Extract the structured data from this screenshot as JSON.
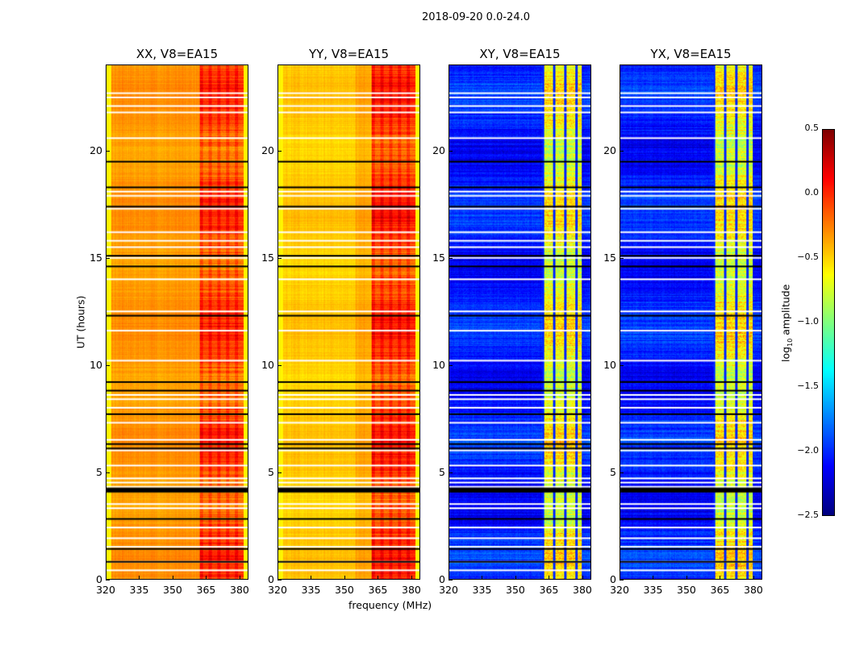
{
  "chart_data": {
    "type": "heatmap",
    "title": "2018-09-20 0.0-24.0",
    "xlabel": "frequency (MHz)",
    "ylabel": "UT (hours)",
    "xlim": [
      320,
      384
    ],
    "ylim": [
      0,
      24
    ],
    "xticks": [
      "320",
      "335",
      "350",
      "365",
      "380"
    ],
    "yticks": [
      "0",
      "5",
      "10",
      "15",
      "20"
    ],
    "panels": [
      {
        "title": "XX, V8=EA15",
        "base_level": -0.4,
        "band_level": -0.05,
        "band_mhz": [
          362,
          382
        ]
      },
      {
        "title": "YY, V8=EA15",
        "base_level": -0.45,
        "band_level": 0.0,
        "band_mhz": [
          362,
          382
        ]
      },
      {
        "title": "XY, V8=EA15",
        "base_level": -2.2,
        "band_level": -0.8,
        "band_mhz": [
          362,
          380
        ]
      },
      {
        "title": "YX, V8=EA15",
        "base_level": -2.2,
        "band_level": -0.8,
        "band_mhz": [
          362,
          380
        ]
      }
    ],
    "flagged_white_hours": [
      0.4,
      0.8,
      1.5,
      1.9,
      2.4,
      3.3,
      3.5,
      4.3,
      4.5,
      4.7,
      5.3,
      6.0,
      6.5,
      7.3,
      8.0,
      8.4,
      8.6,
      10.2,
      11.6,
      12.5,
      14.0,
      15.0,
      15.5,
      15.8,
      16.2,
      17.3,
      17.9,
      18.1,
      20.6,
      21.8,
      22.1,
      22.5,
      22.7
    ],
    "flagged_black_hours": [
      0.8,
      1.4,
      2.8,
      4.1,
      4.2,
      6.1,
      6.3,
      7.7,
      8.8,
      9.2,
      12.3,
      14.6,
      15.1,
      17.4,
      18.3,
      19.5
    ],
    "colorbar": {
      "label": "log10 amplitude",
      "label_main": "log",
      "label_sub": "10",
      "label_rest": " amplitude",
      "range": [
        -2.5,
        0.5
      ],
      "ticks": [
        "0.5",
        "0.0",
        "−0.5",
        "−1.0",
        "−1.5",
        "−2.0",
        "−2.5"
      ],
      "colormap": "jet"
    }
  }
}
